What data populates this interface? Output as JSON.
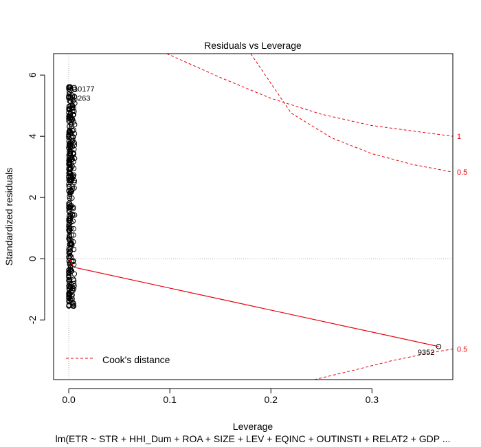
{
  "chart_data": {
    "type": "scatter",
    "title": "Residuals vs Leverage",
    "xlabel": "Leverage",
    "ylabel": "Standardized residuals",
    "subtitle": "lm(ETR ~ STR + HHI_Dum + ROA + SIZE + LEV + EQINC + OUTINSTI + RELAT2 + GDP ...",
    "xlim": [
      -0.015,
      0.38
    ],
    "ylim": [
      -3.95,
      6.7
    ],
    "xticks": [
      0.0,
      0.1,
      0.2,
      0.3
    ],
    "xtick_labels": [
      "0.0",
      "0.1",
      "0.2",
      "0.3"
    ],
    "yticks": [
      -2,
      0,
      2,
      4,
      6
    ],
    "ytick_labels": [
      "-2",
      "0",
      "2",
      "4",
      "6"
    ],
    "grid": false,
    "reference_lines": [
      {
        "axis": "x",
        "value": 0,
        "style": "dotted"
      },
      {
        "axis": "y",
        "value": 0,
        "style": "dotted"
      }
    ],
    "point_cluster": {
      "x_range": [
        0.0,
        0.006
      ],
      "y_range": [
        -1.55,
        5.65
      ]
    },
    "labeled_points": [
      {
        "label": "10177",
        "x": 0.0,
        "y": 5.55
      },
      {
        "label": "3263",
        "x": 0.0,
        "y": 5.25
      },
      {
        "label": "9352",
        "x": 0.366,
        "y": -2.87
      }
    ],
    "smoother": {
      "x": [
        0.0,
        0.003,
        0.005,
        0.366
      ],
      "y": [
        0.05,
        -0.15,
        -0.28,
        -2.87
      ],
      "color": "#e8000b"
    },
    "cooks_distance": [
      {
        "label": "1",
        "x": [
          0.097,
          0.15,
          0.2,
          0.25,
          0.3,
          0.38
        ],
        "y": [
          6.7,
          5.92,
          5.24,
          4.72,
          4.35,
          4.0
        ]
      },
      {
        "label": "0.5",
        "x": [
          0.18,
          0.22,
          0.26,
          0.3,
          0.34,
          0.38
        ],
        "y": [
          6.7,
          4.76,
          3.95,
          3.43,
          3.08,
          2.83
        ]
      },
      {
        "label": "0.5",
        "x": [
          0.243,
          0.28,
          0.32,
          0.36,
          0.38
        ],
        "y": [
          -3.95,
          -3.66,
          -3.33,
          -3.06,
          -2.95
        ]
      }
    ],
    "legend": {
      "entries": [
        "Cook's distance"
      ],
      "position": "bottom-left",
      "line_style": "dashed",
      "color": "#e8000b"
    }
  }
}
